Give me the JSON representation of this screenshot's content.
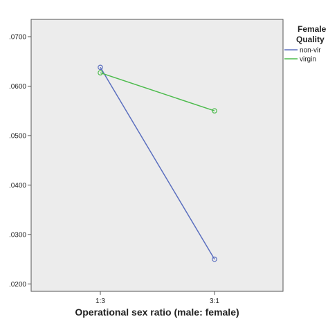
{
  "chart_data": {
    "type": "line",
    "categories": [
      "1:3",
      "3:1"
    ],
    "xlabel": "Operational sex ratio (male: female)",
    "ylabel": "",
    "ylim": [
      0.0185,
      0.0735
    ],
    "yticks": [
      ".0200",
      ".0300",
      ".0400",
      ".0500",
      ".0600",
      ".0700"
    ],
    "ytick_values": [
      0.02,
      0.03,
      0.04,
      0.05,
      0.06,
      0.07
    ],
    "grid": false,
    "legend": {
      "title_lines": [
        "Female",
        "Quality"
      ],
      "placement": "right"
    },
    "series": [
      {
        "name": "non-vir",
        "values": [
          0.0638,
          0.025
        ],
        "color": "#5b6fbf"
      },
      {
        "name": "virgin",
        "values": [
          0.0627,
          0.055
        ],
        "color": "#4cbb4c"
      }
    ]
  },
  "colors": {
    "plot_background": "#ececec",
    "axis": "#555555"
  }
}
